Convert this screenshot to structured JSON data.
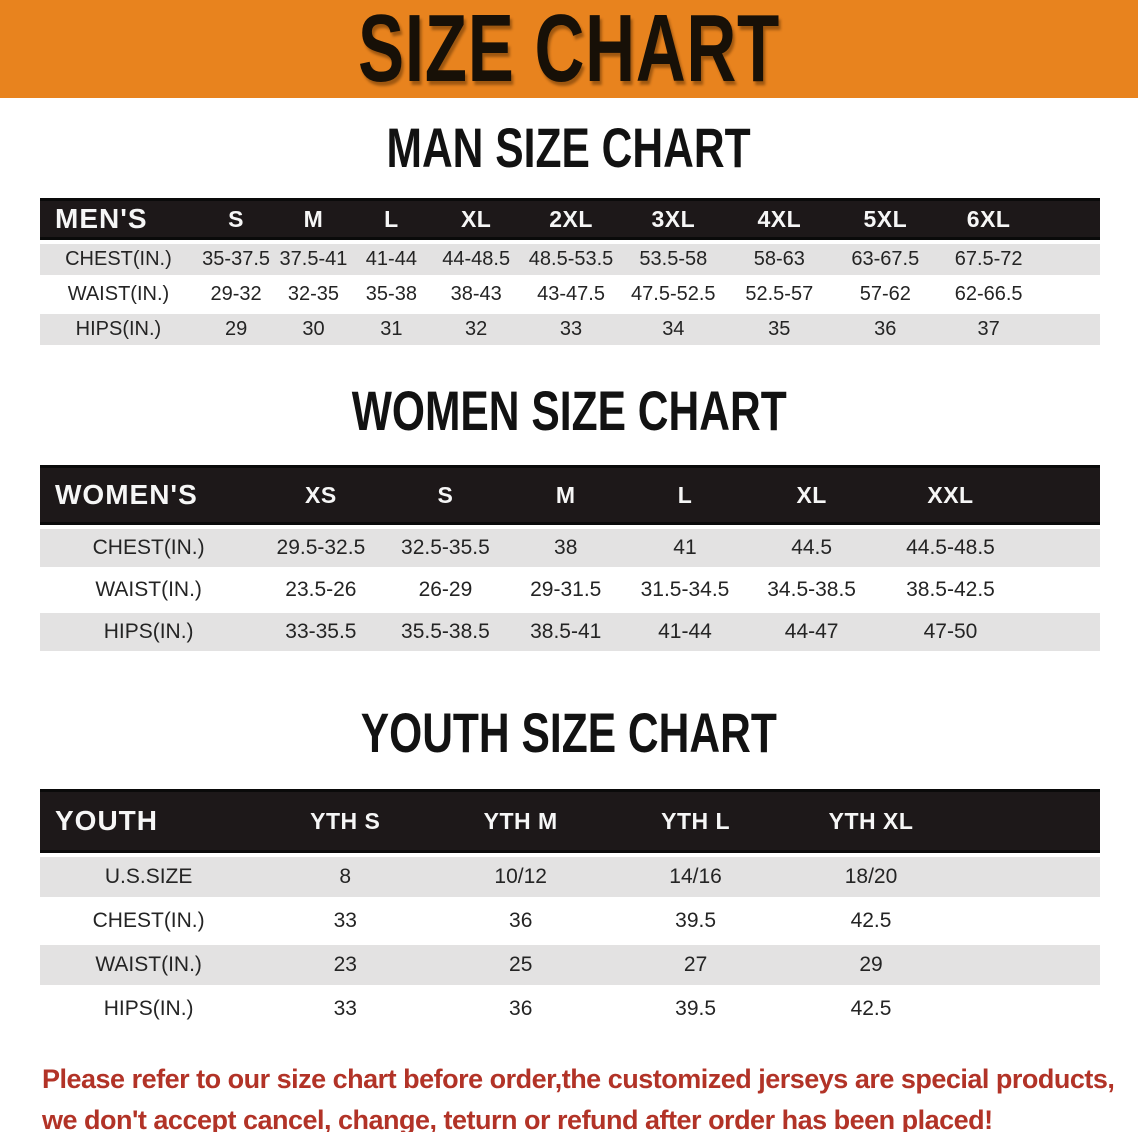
{
  "banner": {
    "title": "SIZE CHART"
  },
  "colors": {
    "banner_orange": "#E8831E",
    "header_band_black": "#1d1819",
    "row_stripe_gray": "#e3e2e2",
    "notice_red": "#B23327"
  },
  "sections": [
    {
      "title": "MAN SIZE CHART",
      "table": {
        "header": [
          "MEN'S",
          "S",
          "M",
          "L",
          "XL",
          "2XL",
          "3XL",
          "4XL",
          "5XL",
          "6XL"
        ],
        "rows": [
          {
            "label": "CHEST(IN.)",
            "values": [
              "35-37.5",
              "37.5-41",
              "41-44",
              "44-48.5",
              "48.5-53.5",
              "53.5-58",
              "58-63",
              "63-67.5",
              "67.5-72"
            ]
          },
          {
            "label": "WAIST(IN.)",
            "values": [
              "29-32",
              "32-35",
              "35-38",
              "38-43",
              "43-47.5",
              "47.5-52.5",
              "52.5-57",
              "57-62",
              "62-66.5"
            ]
          },
          {
            "label": "HIPS(IN.)",
            "values": [
              "29",
              "30",
              "31",
              "32",
              "33",
              "34",
              "35",
              "36",
              "37"
            ]
          }
        ]
      }
    },
    {
      "title": "WOMEN SIZE CHART",
      "table": {
        "header": [
          "WOMEN'S",
          "XS",
          "S",
          "M",
          "L",
          "XL",
          "XXL"
        ],
        "rows": [
          {
            "label": "CHEST(IN.)",
            "values": [
              "29.5-32.5",
              "32.5-35.5",
              "38",
              "41",
              "44.5",
              "44.5-48.5"
            ]
          },
          {
            "label": "WAIST(IN.)",
            "values": [
              "23.5-26",
              "26-29",
              "29-31.5",
              "31.5-34.5",
              "34.5-38.5",
              "38.5-42.5"
            ]
          },
          {
            "label": "HIPS(IN.)",
            "values": [
              "33-35.5",
              "35.5-38.5",
              "38.5-41",
              "41-44",
              "44-47",
              "47-50"
            ]
          }
        ]
      }
    },
    {
      "title": "YOUTH SIZE CHART",
      "table": {
        "header": [
          "YOUTH",
          "YTH S",
          "YTH M",
          "YTH L",
          "YTH XL"
        ],
        "rows": [
          {
            "label": "U.S.SIZE",
            "values": [
              "8",
              "10/12",
              "14/16",
              "18/20"
            ]
          },
          {
            "label": "CHEST(IN.)",
            "values": [
              "33",
              "36",
              "39.5",
              "42.5"
            ]
          },
          {
            "label": "WAIST(IN.)",
            "values": [
              "23",
              "25",
              "27",
              "29"
            ]
          },
          {
            "label": "HIPS(IN.)",
            "values": [
              "33",
              "36",
              "39.5",
              "42.5"
            ]
          }
        ]
      }
    }
  ],
  "notice": {
    "line1": "Please refer to our size chart before order,the customized jerseys are special products,",
    "line2": "we don't accept cancel, change, teturn or refund after order has been placed!"
  }
}
